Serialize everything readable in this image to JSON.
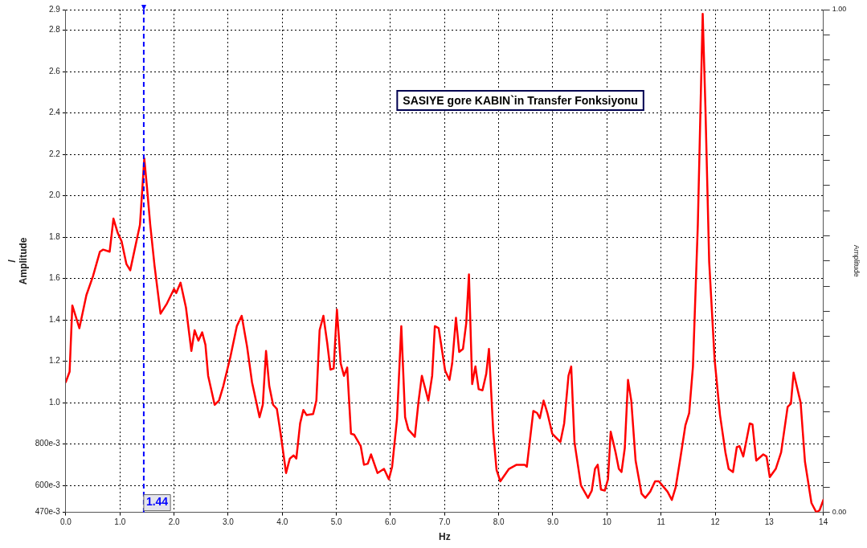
{
  "chart_data": {
    "type": "line",
    "xlabel": "Hz",
    "ylabel": "/\nAmplitude",
    "y2label": "Amplitude",
    "annotations": [
      "SASIYE gore KABIN`in Transfer Fonksiyonu"
    ],
    "xlim": [
      0,
      14
    ],
    "xticks": [
      {
        "value": 0,
        "label": "0.0"
      },
      {
        "value": 1,
        "label": "1.0"
      },
      {
        "value": 2,
        "label": "2.0"
      },
      {
        "value": 3,
        "label": "3.0"
      },
      {
        "value": 4,
        "label": "4.0"
      },
      {
        "value": 5,
        "label": "5.0"
      },
      {
        "value": 6,
        "label": "6.0"
      },
      {
        "value": 7,
        "label": "7.0"
      },
      {
        "value": 8,
        "label": "8.0"
      },
      {
        "value": 9,
        "label": "9.0"
      },
      10,
      11,
      12,
      13,
      14
    ],
    "ylim": [
      0.47,
      2.9
    ],
    "yticks": [
      {
        "value": 0.47,
        "label": "470e-3"
      },
      {
        "value": 0.6,
        "label": "600e-3"
      },
      {
        "value": 0.8,
        "label": "800e-3"
      },
      {
        "value": 1,
        "label": "1.0"
      },
      1.2,
      1.4,
      1.6,
      1.8,
      {
        "value": 2,
        "label": "2.0"
      },
      2.2,
      2.4,
      2.6,
      2.8,
      2.9
    ],
    "y2lim": [
      0,
      1
    ],
    "y2ticks": [
      {
        "value": 0,
        "label": "0.00"
      },
      {
        "value": 0.05,
        "label": null
      },
      {
        "value": 0.1,
        "label": null
      },
      {
        "value": 0.15,
        "label": null
      },
      {
        "value": 0.2,
        "label": null
      },
      {
        "value": 0.25,
        "label": null
      },
      {
        "value": 0.3,
        "label": null
      },
      {
        "value": 0.35,
        "label": null
      },
      {
        "value": 0.4,
        "label": null
      },
      {
        "value": 0.45,
        "label": null
      },
      {
        "value": 0.5,
        "label": null
      },
      {
        "value": 0.55,
        "label": null
      },
      {
        "value": 0.6,
        "label": null
      },
      {
        "value": 0.65,
        "label": null
      },
      {
        "value": 0.7,
        "label": null
      },
      {
        "value": 0.75,
        "label": null
      },
      {
        "value": 0.8,
        "label": null
      },
      {
        "value": 0.85,
        "label": null
      },
      {
        "value": 0.9,
        "label": null
      },
      {
        "value": 0.95,
        "label": null
      },
      {
        "value": 1,
        "label": "1.00"
      }
    ],
    "grid": true,
    "legend": false,
    "marker": "none",
    "line_style": "solid",
    "ref_lines": [
      {
        "axis": "x",
        "value": 1.44,
        "label": "1.44",
        "color": "#0000ff",
        "line_style": "dashed"
      }
    ],
    "series": [
      {
        "color": "#ff0000",
        "x": [
          0,
          0.07,
          0.12,
          0.25,
          0.38,
          0.5,
          0.63,
          0.69,
          0.81,
          0.88,
          0.96,
          1.03,
          1.12,
          1.19,
          1.37,
          1.45,
          1.5,
          1.56,
          1.64,
          1.75,
          1.87,
          2,
          2.04,
          2.12,
          2.22,
          2.32,
          2.38,
          2.45,
          2.52,
          2.58,
          2.63,
          2.75,
          2.83,
          2.91,
          3.04,
          3.16,
          3.25,
          3.35,
          3.44,
          3.58,
          3.64,
          3.7,
          3.76,
          3.83,
          3.9,
          3.97,
          4.07,
          4.14,
          4.21,
          4.26,
          4.33,
          4.39,
          4.45,
          4.57,
          4.63,
          4.69,
          4.76,
          4.83,
          4.89,
          4.95,
          5.01,
          5.08,
          5.14,
          5.2,
          5.27,
          5.33,
          5.45,
          5.51,
          5.58,
          5.64,
          5.76,
          5.88,
          5.97,
          6.03,
          6.12,
          6.2,
          6.27,
          6.33,
          6.45,
          6.52,
          6.58,
          6.63,
          6.7,
          6.77,
          6.82,
          6.89,
          7.01,
          7.09,
          7.14,
          7.21,
          7.27,
          7.34,
          7.4,
          7.45,
          7.51,
          7.57,
          7.63,
          7.7,
          7.77,
          7.82,
          7.9,
          7.96,
          8.03,
          8.19,
          8.33,
          8.48,
          8.52,
          8.64,
          8.71,
          8.76,
          8.83,
          8.9,
          8.99,
          9.14,
          9.21,
          9.29,
          9.34,
          9.4,
          9.52,
          9.65,
          9.72,
          9.78,
          9.83,
          9.89,
          9.96,
          10.02,
          10.07,
          10.16,
          10.22,
          10.27,
          10.33,
          10.39,
          10.45,
          10.53,
          10.64,
          10.71,
          10.8,
          10.89,
          10.96,
          11.12,
          11.2,
          11.27,
          11.35,
          11.45,
          11.52,
          11.59,
          11.68,
          11.77,
          11.82,
          11.89,
          11.99,
          12.09,
          12.19,
          12.25,
          12.33,
          12.4,
          12.45,
          12.52,
          12.64,
          12.69,
          12.76,
          12.89,
          12.95,
          13.01,
          13.12,
          13.22,
          13.34,
          13.4,
          13.45,
          13.58,
          13.66,
          13.78,
          13.87,
          13.93,
          14
        ],
        "values": [
          1.1,
          1.15,
          1.47,
          1.36,
          1.52,
          1.61,
          1.73,
          1.74,
          1.73,
          1.89,
          1.82,
          1.78,
          1.67,
          1.64,
          1.86,
          2.18,
          2.04,
          1.86,
          1.66,
          1.43,
          1.48,
          1.55,
          1.53,
          1.58,
          1.46,
          1.25,
          1.35,
          1.3,
          1.34,
          1.28,
          1.13,
          0.99,
          1.01,
          1.08,
          1.22,
          1.37,
          1.42,
          1.27,
          1.1,
          0.93,
          0.99,
          1.25,
          1.08,
          0.99,
          0.97,
          0.85,
          0.66,
          0.73,
          0.745,
          0.73,
          0.9,
          0.965,
          0.94,
          0.945,
          1.01,
          1.35,
          1.42,
          1.29,
          1.16,
          1.165,
          1.45,
          1.19,
          1.13,
          1.17,
          0.85,
          0.845,
          0.79,
          0.7,
          0.705,
          0.75,
          0.66,
          0.68,
          0.63,
          0.69,
          0.92,
          1.37,
          0.93,
          0.87,
          0.835,
          1.01,
          1.13,
          1.08,
          1.01,
          1.13,
          1.37,
          1.36,
          1.155,
          1.11,
          1.19,
          1.41,
          1.245,
          1.26,
          1.385,
          1.62,
          1.09,
          1.175,
          1.065,
          1.06,
          1.14,
          1.26,
          0.855,
          0.675,
          0.62,
          0.68,
          0.7,
          0.7,
          0.69,
          0.96,
          0.95,
          0.925,
          1.01,
          0.95,
          0.85,
          0.81,
          0.9,
          1.13,
          1.175,
          0.81,
          0.6,
          0.54,
          0.575,
          0.68,
          0.7,
          0.58,
          0.575,
          0.63,
          0.86,
          0.76,
          0.68,
          0.665,
          0.78,
          1.11,
          1.01,
          0.72,
          0.56,
          0.54,
          0.57,
          0.62,
          0.62,
          0.57,
          0.53,
          0.59,
          0.72,
          0.89,
          0.95,
          1.175,
          1.86,
          2.88,
          2.43,
          1.68,
          1.21,
          0.94,
          0.76,
          0.68,
          0.665,
          0.785,
          0.79,
          0.74,
          0.9,
          0.895,
          0.72,
          0.75,
          0.74,
          0.64,
          0.68,
          0.76,
          0.98,
          0.995,
          1.145,
          1,
          0.715,
          0.515,
          0.47,
          0.48,
          0.53
        ]
      }
    ]
  }
}
